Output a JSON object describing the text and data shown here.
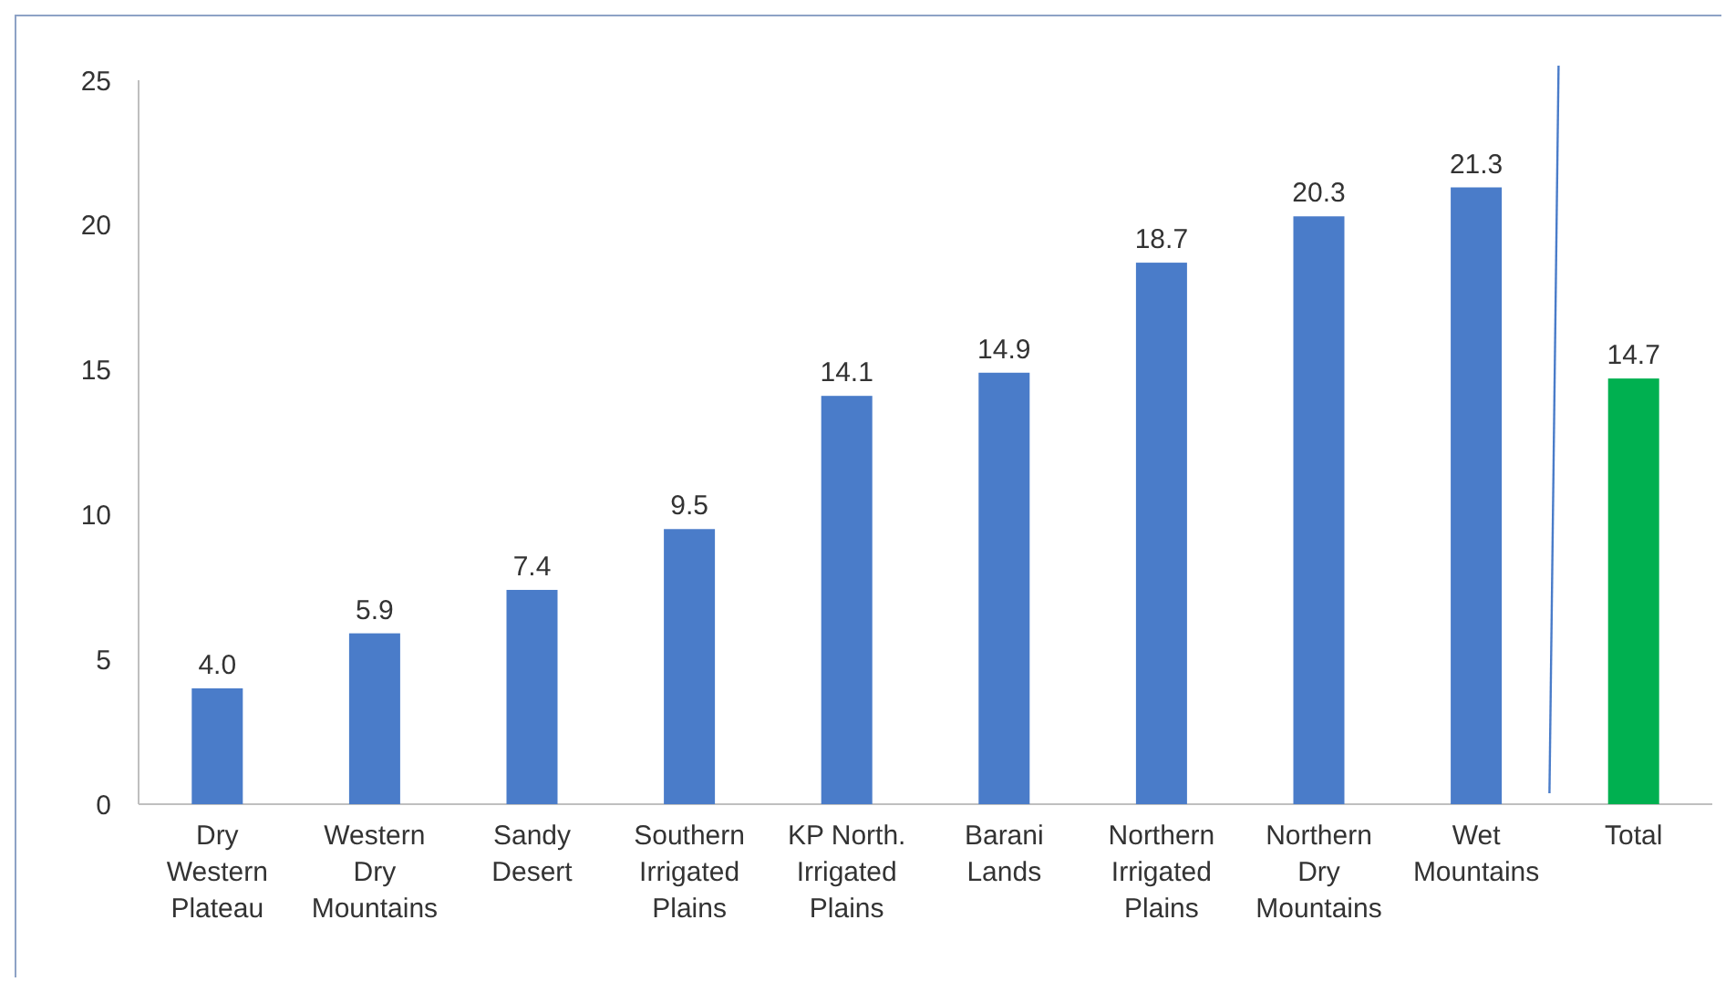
{
  "chart_data": {
    "type": "bar",
    "categories": [
      "Dry Western Plateau",
      "Western Dry Mountains",
      "Sandy Desert",
      "Southern Irrigated Plains",
      "KP North. Irrigated Plains",
      "Barani Lands",
      "Northern Irrigated Plains",
      "Northern Dry Mountains",
      "Wet Mountains",
      "Total"
    ],
    "values": [
      4.0,
      5.9,
      7.4,
      9.5,
      14.1,
      14.9,
      18.7,
      20.3,
      21.3,
      14.7
    ],
    "colors": [
      "#4a7cc9",
      "#4a7cc9",
      "#4a7cc9",
      "#4a7cc9",
      "#4a7cc9",
      "#4a7cc9",
      "#4a7cc9",
      "#4a7cc9",
      "#4a7cc9",
      "#00b050"
    ],
    "ylim": [
      0,
      25
    ],
    "yticks": [
      0,
      5,
      10,
      15,
      20,
      25
    ],
    "grid": false,
    "value_labels": [
      "4.0",
      "5.9",
      "7.4",
      "9.5",
      "14.1",
      "14.9",
      "18.7",
      "20.3",
      "21.3",
      "14.7"
    ]
  }
}
